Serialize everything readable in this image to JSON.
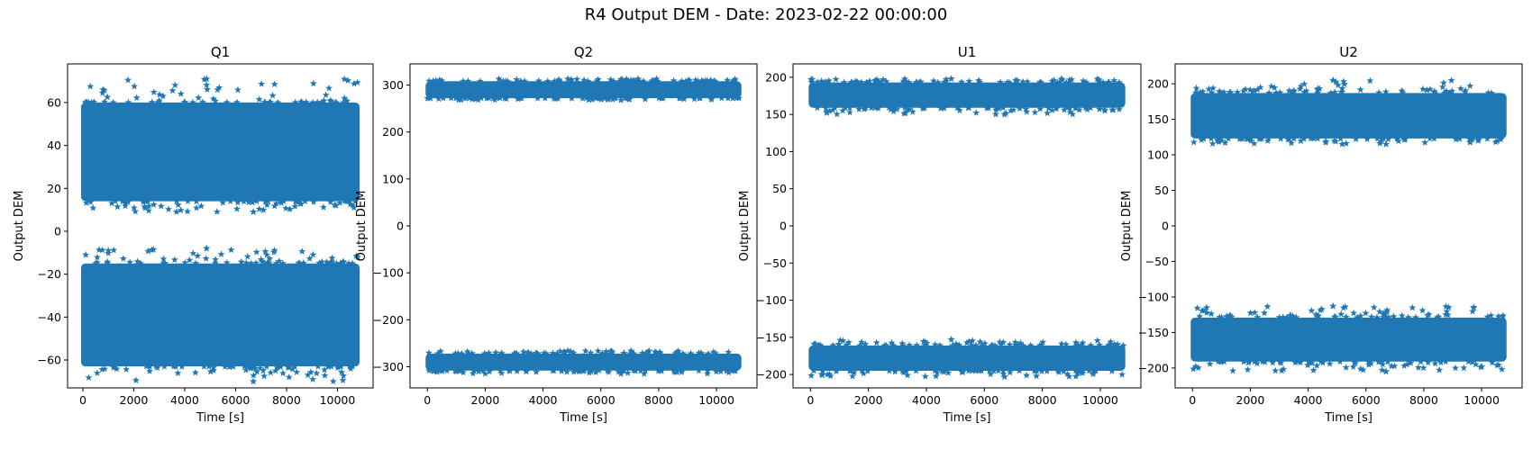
{
  "figure": {
    "suptitle": "R4 Output DEM - Date: 2023-02-22 00:00:00"
  },
  "colors": {
    "series": "#1f77b4",
    "axes": "#000000"
  },
  "chart_data": [
    {
      "type": "scatter",
      "title": "Q1",
      "xlabel": "Time [s]",
      "ylabel": "Output DEM",
      "marker": "star",
      "grid": false,
      "xlim": [
        -600,
        11400
      ],
      "ylim": [
        -73,
        78
      ],
      "xticks": [
        0,
        2000,
        4000,
        6000,
        8000,
        10000
      ],
      "yticks": [
        -60,
        -40,
        -20,
        0,
        20,
        40,
        60
      ],
      "x_range": [
        0,
        10800
      ],
      "bands": [
        {
          "center": 37,
          "core_half_width": 23,
          "min": 9,
          "max": 71
        },
        {
          "center": -39,
          "core_half_width": 24,
          "min": -70,
          "max": -8
        }
      ]
    },
    {
      "type": "scatter",
      "title": "Q2",
      "xlabel": "Time [s]",
      "ylabel": "Output DEM",
      "marker": "star",
      "grid": false,
      "xlim": [
        -600,
        11400
      ],
      "ylim": [
        -345,
        345
      ],
      "xticks": [
        0,
        2000,
        4000,
        6000,
        8000,
        10000
      ],
      "yticks": [
        -300,
        -200,
        -100,
        0,
        100,
        200,
        300
      ],
      "x_range": [
        0,
        10800
      ],
      "bands": [
        {
          "center": 290,
          "core_half_width": 18,
          "min": 268,
          "max": 313
        },
        {
          "center": -290,
          "core_half_width": 18,
          "min": -315,
          "max": -266
        }
      ]
    },
    {
      "type": "scatter",
      "title": "U1",
      "xlabel": "Time [s]",
      "ylabel": "Output DEM",
      "marker": "star",
      "grid": false,
      "xlim": [
        -600,
        11400
      ],
      "ylim": [
        -218,
        218
      ],
      "xticks": [
        0,
        2000,
        4000,
        6000,
        8000,
        10000
      ],
      "yticks": [
        -200,
        -150,
        -100,
        -50,
        0,
        50,
        100,
        150,
        200
      ],
      "x_range": [
        0,
        10800
      ],
      "bands": [
        {
          "center": 176,
          "core_half_width": 17,
          "min": 150,
          "max": 198
        },
        {
          "center": -178,
          "core_half_width": 17,
          "min": -203,
          "max": -153
        }
      ]
    },
    {
      "type": "scatter",
      "title": "U2",
      "xlabel": "Time [s]",
      "ylabel": "Output DEM",
      "marker": "star",
      "grid": false,
      "xlim": [
        -600,
        11400
      ],
      "ylim": [
        -228,
        228
      ],
      "xticks": [
        0,
        2000,
        4000,
        6000,
        8000,
        10000
      ],
      "yticks": [
        -200,
        -150,
        -100,
        -50,
        0,
        50,
        100,
        150,
        200
      ],
      "x_range": [
        0,
        10800
      ],
      "bands": [
        {
          "center": 155,
          "core_half_width": 32,
          "min": 115,
          "max": 205
        },
        {
          "center": -160,
          "core_half_width": 31,
          "min": -205,
          "max": -113
        }
      ]
    }
  ]
}
